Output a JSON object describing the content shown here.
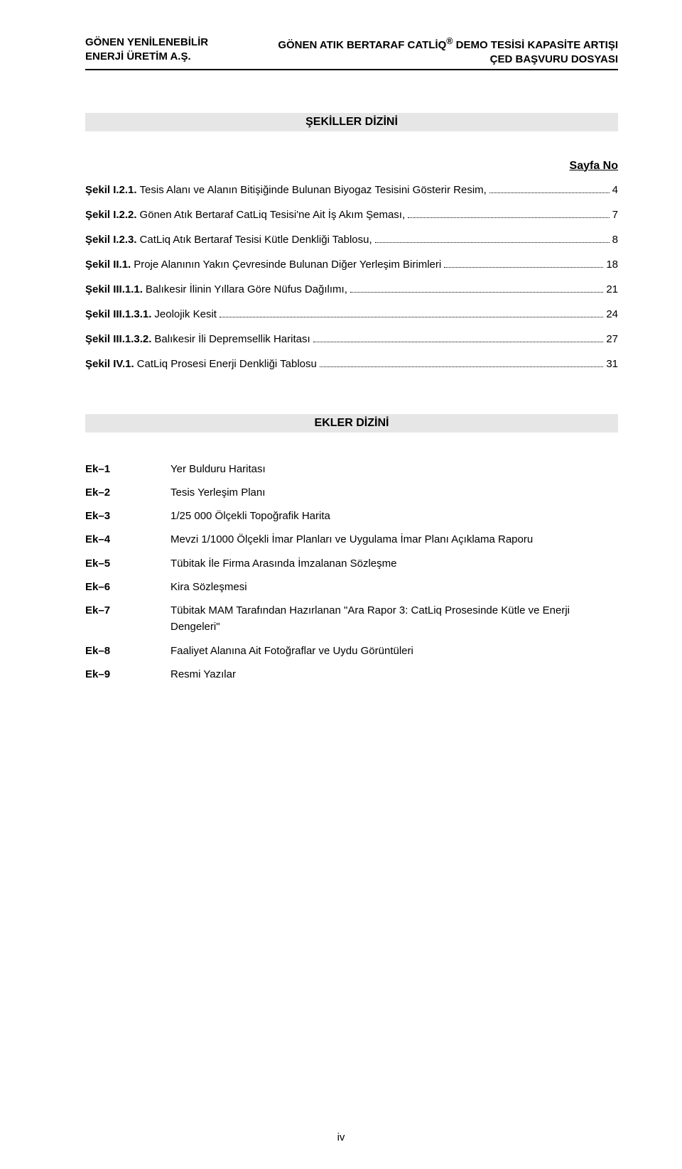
{
  "header": {
    "left_line1": "GÖNEN YENİLENEBİLİR",
    "left_line2": "ENERJİ  ÜRETİM A.Ş.",
    "right_line1_a": "GÖNEN ATIK BERTARAF CATLİQ",
    "right_line1_sup": "®",
    "right_line1_b": " DEMO TESİSİ KAPASİTE ARTIŞI",
    "right_line2": "ÇED BAŞVURU DOSYASI"
  },
  "sections": {
    "sekiller_title": "ŞEKİLLER DİZİNİ",
    "sayfa_no": "Sayfa No",
    "ekler_title": "EKLER DİZİNİ"
  },
  "sekiller": [
    {
      "label": "Şekil I.2.1.",
      "text": " Tesis Alanı ve Alanın Bitişiğinde Bulunan Biyogaz Tesisini Gösterir Resim,",
      "page": "4"
    },
    {
      "label": "Şekil I.2.2.",
      "text": " Gönen Atık Bertaraf CatLiq Tesisi'ne Ait İş Akım Şeması,",
      "page": "7"
    },
    {
      "label": "Şekil I.2.3.",
      "text": " CatLiq Atık Bertaraf Tesisi Kütle Denkliği Tablosu,",
      "page": "8"
    },
    {
      "label": "Şekil II.1.",
      "text": "   Proje Alanının Yakın Çevresinde Bulunan Diğer Yerleşim Birimleri",
      "page": "18"
    },
    {
      "label": "Şekil III.1.1.",
      "text": " Balıkesir İlinin Yıllara Göre Nüfus Dağılımı,",
      "page": "21"
    },
    {
      "label": "Şekil III.1.3.1.",
      "text": " Jeolojik Kesit",
      "page": "24"
    },
    {
      "label": "Şekil III.1.3.2.",
      "text": " Balıkesir İli Depremsellik Haritası",
      "page": "27"
    },
    {
      "label": "Şekil IV.1.",
      "text": " CatLiq Prosesi Enerji Denkliği Tablosu",
      "page": "31"
    }
  ],
  "ekler": [
    {
      "label": "Ek–1",
      "text": "Yer Bulduru Haritası"
    },
    {
      "label": "Ek–2",
      "text": "Tesis Yerleşim Planı"
    },
    {
      "label": "Ek–3",
      "text": "1/25 000 Ölçekli Topoğrafik Harita"
    },
    {
      "label": "Ek–4",
      "text": "Mevzi 1/1000 Ölçekli İmar Planları ve Uygulama İmar Planı Açıklama Raporu"
    },
    {
      "label": "Ek–5",
      "text": "Tübitak İle Firma  Arasında İmzalanan Sözleşme"
    },
    {
      "label": "Ek–6",
      "text": "Kira Sözleşmesi"
    },
    {
      "label": "Ek–7",
      "text": "Tübitak MAM Tarafından Hazırlanan \"Ara Rapor 3: CatLiq Prosesinde Kütle ve Enerji Dengeleri\""
    },
    {
      "label": "Ek–8",
      "text": "Faaliyet Alanına Ait Fotoğraflar ve Uydu Görüntüleri"
    },
    {
      "label": "Ek–9",
      "text": "Resmi Yazılar"
    }
  ],
  "footer": {
    "page_no": "iv"
  }
}
